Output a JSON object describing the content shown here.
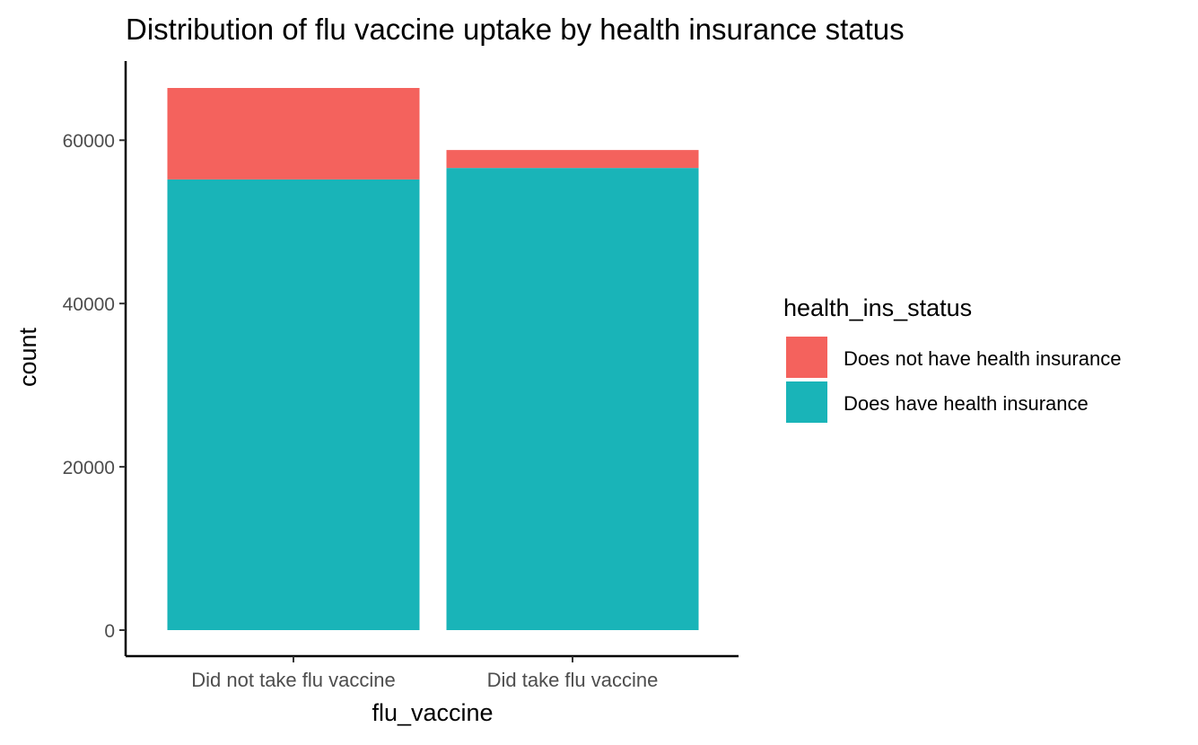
{
  "chart_data": {
    "type": "bar",
    "stacked": true,
    "title": "Distribution of flu vaccine uptake by health insurance status",
    "xlabel": "flu_vaccine",
    "ylabel": "count",
    "categories": [
      "Did not take flu vaccine",
      "Did take flu vaccine"
    ],
    "series": [
      {
        "name": "Does have health insurance",
        "color": "#19B4B8",
        "values": [
          55200,
          56600
        ]
      },
      {
        "name": "Does not have health insurance",
        "color": "#F4625D",
        "values": [
          11200,
          2200
        ]
      }
    ],
    "ylim": [
      0,
      66400
    ],
    "yticks": [
      0,
      20000,
      40000,
      60000
    ],
    "ytick_labels": [
      "0",
      "20000",
      "40000",
      "60000"
    ],
    "grid": false,
    "legend": {
      "title": "health_ins_status",
      "position": "right",
      "entries": [
        {
          "label": "Does not have health insurance",
          "color": "#F4625D"
        },
        {
          "label": "Does have health insurance",
          "color": "#19B4B8"
        }
      ]
    }
  }
}
